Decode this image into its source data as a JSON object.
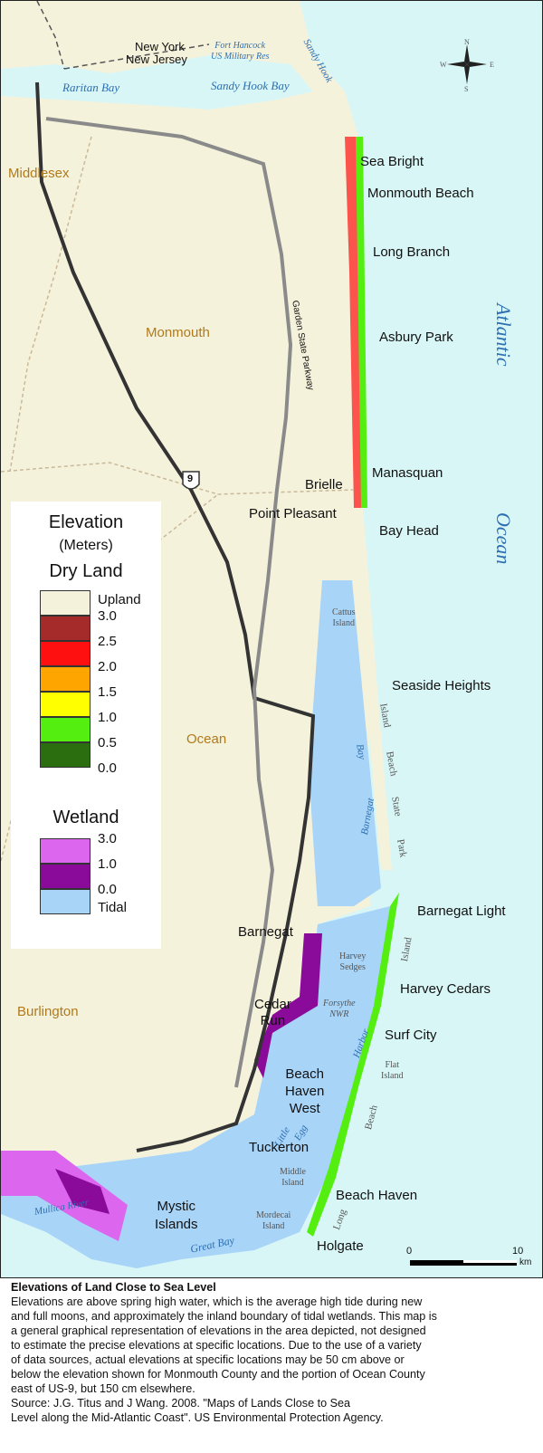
{
  "map": {
    "state_labels": {
      "new_york": "New York",
      "new_jersey": "New Jersey"
    },
    "reserve_label": {
      "line1": "Fort Hancock",
      "line2": "US Military Res"
    },
    "counties": {
      "middlesex": "Middlesex",
      "monmouth": "Monmouth",
      "ocean": "Ocean",
      "burlington": "Burlington"
    },
    "water": {
      "raritan_bay": "Raritan Bay",
      "sandy_hook_bay": "Sandy Hook Bay",
      "sandy_hook": "Sandy Hook",
      "atlantic": "Atlantic",
      "ocean": "Ocean",
      "bay": "Bay",
      "barnegat": "Barnegat",
      "harbor": "Harbor",
      "little_egg_1": "Little",
      "little_egg_2": "Egg",
      "mullica_river": "Mullica River",
      "great_bay": "Great Bay",
      "island_beach_1": "Island",
      "island_beach_2": "Beach",
      "island_beach_3": "State",
      "island_beach_4": "Park",
      "lbi_island": "Island",
      "lbi_beach": "Beach",
      "lbi_long": "Long"
    },
    "places": {
      "sea_bright": "Sea Bright",
      "monmouth_beach": "Monmouth Beach",
      "long_branch": "Long Branch",
      "asbury_park": "Asbury Park",
      "manasquan": "Manasquan",
      "brielle": "Brielle",
      "point_pleasant": "Point Pleasant",
      "bay_head": "Bay Head",
      "seaside_heights": "Seaside Heights",
      "barnegat_light": "Barnegat Light",
      "barnegat": "Barnegat",
      "harvey_cedars": "Harvey Cedars",
      "cedar_run_1": "Cedar",
      "cedar_run_2": "Run",
      "surf_city": "Surf City",
      "beach_haven_west_1": "Beach",
      "beach_haven_west_2": "Haven",
      "beach_haven_west_3": "West",
      "tuckerton": "Tuckerton",
      "mystic_islands_1": "Mystic",
      "mystic_islands_2": "Islands",
      "beach_haven": "Beach Haven",
      "holgate": "Holgate"
    },
    "small_labels": {
      "cattus_1": "Cattus",
      "cattus_2": "Island",
      "harvey_sedges_1": "Harvey",
      "harvey_sedges_2": "Sedges",
      "forsythe_1": "Forsythe",
      "forsythe_2": "NWR",
      "flat_1": "Flat",
      "flat_2": "Island",
      "middle_1": "Middle",
      "middle_2": "Island",
      "mordecai_1": "Mordecai",
      "mordecai_2": "Island"
    },
    "road_labels": {
      "parkway": "Garden State Parkway",
      "route": "9"
    },
    "compass": {
      "n": "N",
      "s": "S",
      "e": "E",
      "w": "W"
    },
    "scale": {
      "min": "0",
      "max": "10",
      "unit": "km"
    }
  },
  "legend": {
    "title": "Elevation",
    "units": "(Meters)",
    "dry_land": "Dry Land",
    "upland": "Upland",
    "dry_values": [
      "3.0",
      "2.5",
      "2.0",
      "1.5",
      "1.0",
      "0.5",
      "0.0"
    ],
    "dry_colors": [
      "#f5f2dc",
      "#a52a2a",
      "#ff1010",
      "#ffa500",
      "#ffff00",
      "#55ee11",
      "#2a6e10"
    ],
    "wetland": "Wetland",
    "wet_values": [
      "3.0",
      "1.0",
      "0.0"
    ],
    "tidal": "Tidal",
    "wet_colors": [
      "#dd66ee",
      "#8a0a9a",
      "#a8d4f8"
    ]
  },
  "caption": {
    "title": "Elevations of Land Close to Sea Level",
    "lines": [
      "Elevations are above spring high water, which is the average high tide during new",
      "and full moons, and approximately the inland boundary of tidal wetlands. This map is",
      "a general graphical representation of elevations in the area depicted, not designed",
      "to estimate the precise elevations at specific locations.  Due to the use of a variety",
      "of data sources, actual elevations at specific locations may be 50 cm above or",
      "below the elevation shown for Monmouth County and the portion of Ocean County",
      "east of US-9, but 150 cm elsewhere.",
      "Source:  J.G. Titus and J Wang.  2008.   \"Maps of Lands Close to Sea",
      "Level along the Mid-Atlantic Coast\".  US Environmental Protection Agency."
    ]
  }
}
